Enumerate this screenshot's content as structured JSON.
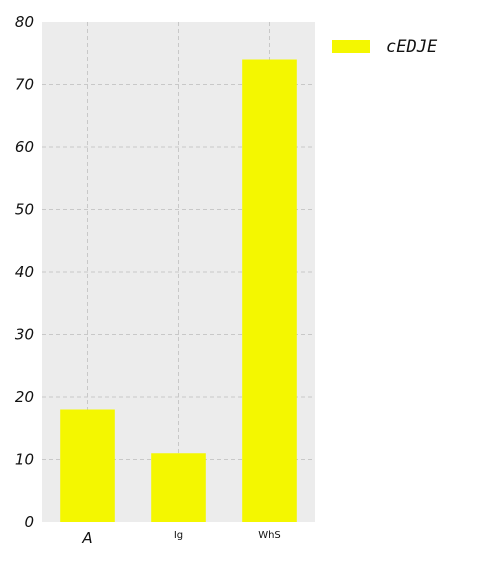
{
  "chart_data": {
    "type": "bar",
    "categories": [
      "A",
      "Ig",
      "WhS"
    ],
    "series": [
      {
        "name": "cEDJE",
        "values": [
          18,
          11,
          74
        ]
      }
    ],
    "title": "",
    "xlabel": "",
    "ylabel": "",
    "ylim": [
      0,
      80
    ],
    "yticks": [
      0,
      10,
      20,
      30,
      40,
      50,
      60,
      70,
      80
    ],
    "grid": true,
    "legend_position": "right",
    "colors": {
      "bar": "#f4f700",
      "plot_background": "#ececec",
      "grid": "#c8c8c8"
    }
  }
}
